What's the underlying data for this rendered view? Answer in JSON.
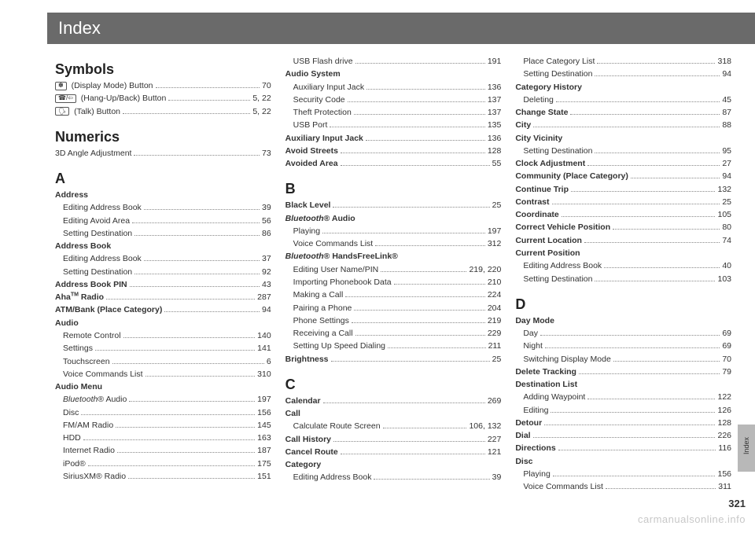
{
  "header": {
    "title": "Index"
  },
  "side": {
    "label": "Index"
  },
  "footer": {
    "pageNumber": "321",
    "watermark": "carmanualsonline.info"
  },
  "col1": {
    "symbols": {
      "head": "Symbols",
      "items": [
        {
          "icon": "✽",
          "label": " (Display Mode) Button",
          "page": "70"
        },
        {
          "icon": "☎/⇦",
          "label": " (Hang-Up/Back) Button",
          "page": "5, 22"
        },
        {
          "icon": "🗣",
          "label": " (Talk) Button",
          "page": "5, 22"
        }
      ]
    },
    "numerics": {
      "head": "Numerics",
      "items": [
        {
          "label": "3D Angle Adjustment",
          "page": "73"
        }
      ]
    },
    "a": {
      "head": "A",
      "groups": [
        {
          "label": "Address",
          "bold": true,
          "nopage": true
        },
        {
          "label": "Editing Address Book",
          "page": "39",
          "sub": true
        },
        {
          "label": "Editing Avoid Area",
          "page": "56",
          "sub": true
        },
        {
          "label": "Setting Destination",
          "page": "86",
          "sub": true
        },
        {
          "label": "Address Book",
          "bold": true,
          "nopage": true
        },
        {
          "label": "Editing Address Book",
          "page": "37",
          "sub": true
        },
        {
          "label": "Setting Destination",
          "page": "92",
          "sub": true
        },
        {
          "label": "Address Book PIN",
          "bold": true,
          "page": "43"
        },
        {
          "label": "Aha<sup>TM</sup> Radio",
          "bold": true,
          "page": "287"
        },
        {
          "label": "ATM/Bank (Place Category)",
          "bold": true,
          "page": "94"
        },
        {
          "label": "Audio",
          "bold": true,
          "nopage": true
        },
        {
          "label": "Remote Control",
          "page": "140",
          "sub": true
        },
        {
          "label": "Settings",
          "page": "141",
          "sub": true
        },
        {
          "label": "Touchscreen",
          "page": "6",
          "sub": true
        },
        {
          "label": "Voice Commands List",
          "page": "310",
          "sub": true
        },
        {
          "label": "Audio Menu",
          "bold": true,
          "nopage": true
        },
        {
          "label": "<i>Bluetooth</i>® Audio",
          "page": "197",
          "sub": true
        },
        {
          "label": "Disc",
          "page": "156",
          "sub": true
        },
        {
          "label": "FM/AM Radio",
          "page": "145",
          "sub": true
        },
        {
          "label": "HDD",
          "page": "163",
          "sub": true
        },
        {
          "label": "Internet Radio",
          "page": "187",
          "sub": true
        },
        {
          "label": "iPod®",
          "page": "175",
          "sub": true
        },
        {
          "label": "SiriusXM® Radio",
          "page": "151",
          "sub": true
        }
      ]
    }
  },
  "col2": {
    "topA": [
      {
        "label": "USB Flash drive",
        "page": "191",
        "sub": true
      },
      {
        "label": "Audio System",
        "bold": true,
        "nopage": true
      },
      {
        "label": "Auxiliary Input Jack",
        "page": "136",
        "sub": true
      },
      {
        "label": "Security Code",
        "page": "137",
        "sub": true
      },
      {
        "label": "Theft Protection",
        "page": "137",
        "sub": true
      },
      {
        "label": "USB Port",
        "page": "135",
        "sub": true
      },
      {
        "label": "Auxiliary Input Jack",
        "bold": true,
        "page": "136"
      },
      {
        "label": "Avoid Streets",
        "bold": true,
        "page": "128"
      },
      {
        "label": "Avoided Area",
        "bold": true,
        "page": "55"
      }
    ],
    "b": {
      "head": "B",
      "items": [
        {
          "label": "Black Level",
          "bold": true,
          "page": "25"
        },
        {
          "label": "<i>Bluetooth</i>® Audio",
          "bold": true,
          "nopage": true
        },
        {
          "label": "Playing",
          "page": "197",
          "sub": true
        },
        {
          "label": "Voice Commands List",
          "page": "312",
          "sub": true
        },
        {
          "label": "<i>Bluetooth</i>® HandsFreeLink®",
          "bold": true,
          "nopage": true
        },
        {
          "label": "Editing User Name/PIN",
          "page": "219, 220",
          "sub": true
        },
        {
          "label": "Importing Phonebook Data",
          "page": "210",
          "sub": true
        },
        {
          "label": "Making a Call",
          "page": "224",
          "sub": true
        },
        {
          "label": "Pairing a Phone",
          "page": "204",
          "sub": true
        },
        {
          "label": "Phone Settings",
          "page": "219",
          "sub": true
        },
        {
          "label": "Receiving a Call",
          "page": "229",
          "sub": true
        },
        {
          "label": "Setting Up Speed Dialing",
          "page": "211",
          "sub": true
        },
        {
          "label": "Brightness",
          "bold": true,
          "page": "25"
        }
      ]
    },
    "c": {
      "head": "C",
      "items": [
        {
          "label": "Calendar",
          "bold": true,
          "page": "269"
        },
        {
          "label": "Call",
          "bold": true,
          "nopage": true
        },
        {
          "label": "Calculate Route Screen",
          "page": "106, 132",
          "sub": true
        },
        {
          "label": "Call History",
          "bold": true,
          "page": "227"
        },
        {
          "label": "Cancel Route",
          "bold": true,
          "page": "121"
        },
        {
          "label": "Category",
          "bold": true,
          "nopage": true
        },
        {
          "label": "Editing Address Book",
          "page": "39",
          "sub": true
        }
      ]
    }
  },
  "col3": {
    "topC": [
      {
        "label": "Place Category List",
        "page": "318",
        "sub": true
      },
      {
        "label": "Setting Destination",
        "page": "94",
        "sub": true
      },
      {
        "label": "Category History",
        "bold": true,
        "nopage": true
      },
      {
        "label": "Deleting",
        "page": "45",
        "sub": true
      },
      {
        "label": "Change State",
        "bold": true,
        "page": "87"
      },
      {
        "label": "City",
        "bold": true,
        "page": "88"
      },
      {
        "label": "City Vicinity",
        "bold": true,
        "nopage": true
      },
      {
        "label": "Setting Destination",
        "page": "95",
        "sub": true
      },
      {
        "label": "Clock Adjustment",
        "bold": true,
        "page": "27"
      },
      {
        "label": "Community (Place Category)",
        "bold": true,
        "page": "94"
      },
      {
        "label": "Continue Trip",
        "bold": true,
        "page": "132"
      },
      {
        "label": "Contrast",
        "bold": true,
        "page": "25"
      },
      {
        "label": "Coordinate",
        "bold": true,
        "page": "105"
      },
      {
        "label": "Correct Vehicle Position",
        "bold": true,
        "page": "80"
      },
      {
        "label": "Current Location",
        "bold": true,
        "page": "74"
      },
      {
        "label": "Current Position",
        "bold": true,
        "nopage": true
      },
      {
        "label": "Editing Address Book",
        "page": "40",
        "sub": true
      },
      {
        "label": "Setting Destination",
        "page": "103",
        "sub": true
      }
    ],
    "d": {
      "head": "D",
      "items": [
        {
          "label": "Day Mode",
          "bold": true,
          "nopage": true
        },
        {
          "label": "Day",
          "page": "69",
          "sub": true
        },
        {
          "label": "Night",
          "page": "69",
          "sub": true
        },
        {
          "label": "Switching Display Mode",
          "page": "70",
          "sub": true
        },
        {
          "label": "Delete Tracking",
          "bold": true,
          "page": "79"
        },
        {
          "label": "Destination List",
          "bold": true,
          "nopage": true
        },
        {
          "label": "Adding Waypoint",
          "page": "122",
          "sub": true
        },
        {
          "label": "Editing",
          "page": "126",
          "sub": true
        },
        {
          "label": "Detour",
          "bold": true,
          "page": "128"
        },
        {
          "label": "Dial",
          "bold": true,
          "page": "226"
        },
        {
          "label": "Directions",
          "bold": true,
          "page": "116"
        },
        {
          "label": "Disc",
          "bold": true,
          "nopage": true
        },
        {
          "label": "Playing",
          "page": "156",
          "sub": true
        },
        {
          "label": "Voice Commands List",
          "page": "311",
          "sub": true
        }
      ]
    }
  }
}
